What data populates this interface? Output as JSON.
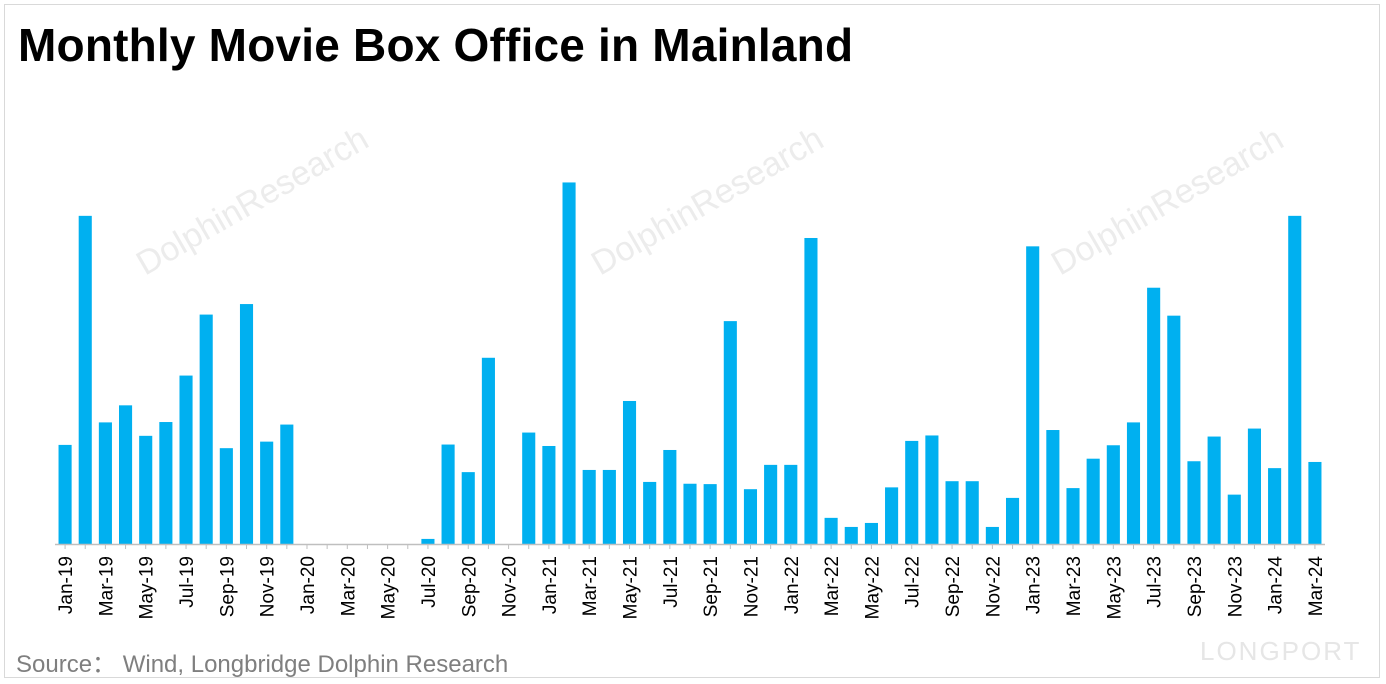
{
  "title": "Monthly Movie Box Office in Mainland",
  "source": "Source：  Wind, Longbridge Dolphin Research",
  "watermark": {
    "text": "DolphinResearch",
    "brand": "LONGPORT"
  },
  "colors": {
    "bar": "#00b0f0",
    "axis": "#bfbfbf",
    "text": "#000000",
    "source": "#7f7f7f"
  },
  "chart_data": {
    "type": "bar",
    "title": "Monthly Movie Box Office in Mainland",
    "xlabel": "",
    "ylabel": "",
    "grid": false,
    "ylim": [
      0,
      100
    ],
    "categories": [
      "Jan-19",
      "Feb-19",
      "Mar-19",
      "Apr-19",
      "May-19",
      "Jun-19",
      "Jul-19",
      "Aug-19",
      "Sep-19",
      "Oct-19",
      "Nov-19",
      "Dec-19",
      "Jan-20",
      "Feb-20",
      "Mar-20",
      "Apr-20",
      "May-20",
      "Jun-20",
      "Jul-20",
      "Aug-20",
      "Sep-20",
      "Oct-20",
      "Nov-20",
      "Dec-20",
      "Jan-21",
      "Feb-21",
      "Mar-21",
      "Apr-21",
      "May-21",
      "Jun-21",
      "Jul-21",
      "Aug-21",
      "Sep-21",
      "Oct-21",
      "Nov-21",
      "Dec-21",
      "Jan-22",
      "Feb-22",
      "Mar-22",
      "Apr-22",
      "May-22",
      "Jun-22",
      "Jul-22",
      "Aug-22",
      "Sep-22",
      "Oct-22",
      "Nov-22",
      "Dec-22",
      "Jan-23",
      "Feb-23",
      "Mar-23",
      "Apr-23",
      "May-23",
      "Jun-23",
      "Jul-23",
      "Aug-23",
      "Sep-23",
      "Oct-23",
      "Nov-23",
      "Dec-23",
      "Jan-24",
      "Feb-24",
      "Mar-24"
    ],
    "tick_labels": [
      "Jan-19",
      "Mar-19",
      "May-19",
      "Jul-19",
      "Sep-19",
      "Nov-19",
      "Jan-20",
      "Mar-20",
      "May-20",
      "Jul-20",
      "Sep-20",
      "Nov-20",
      "Jan-21",
      "Mar-21",
      "May-21",
      "Jul-21",
      "Sep-21",
      "Nov-21",
      "Jan-22",
      "Mar-22",
      "May-22",
      "Jul-22",
      "Sep-22",
      "Nov-22",
      "Jan-23",
      "Mar-23",
      "May-23",
      "Jul-23",
      "Sep-23",
      "Nov-23",
      "Jan-24",
      "Mar-24"
    ],
    "values": [
      27.3,
      90.4,
      33.5,
      38.2,
      29.8,
      33.6,
      46.4,
      63.2,
      26.4,
      66.1,
      28.2,
      32.9,
      0,
      0,
      0,
      0,
      0,
      0,
      1.4,
      27.4,
      19.8,
      51.3,
      0,
      30.7,
      27.0,
      99.6,
      20.4,
      20.4,
      39.4,
      17.1,
      25.9,
      16.6,
      16.5,
      61.4,
      15.1,
      21.8,
      21.8,
      84.3,
      7.2,
      4.7,
      5.8,
      15.6,
      28.4,
      29.9,
      17.3,
      17.3,
      4.7,
      12.7,
      82.0,
      31.4,
      15.4,
      23.5,
      27.2,
      33.5,
      70.6,
      62.9,
      22.8,
      29.6,
      13.6,
      31.8,
      20.9,
      90.4,
      22.6
    ]
  }
}
